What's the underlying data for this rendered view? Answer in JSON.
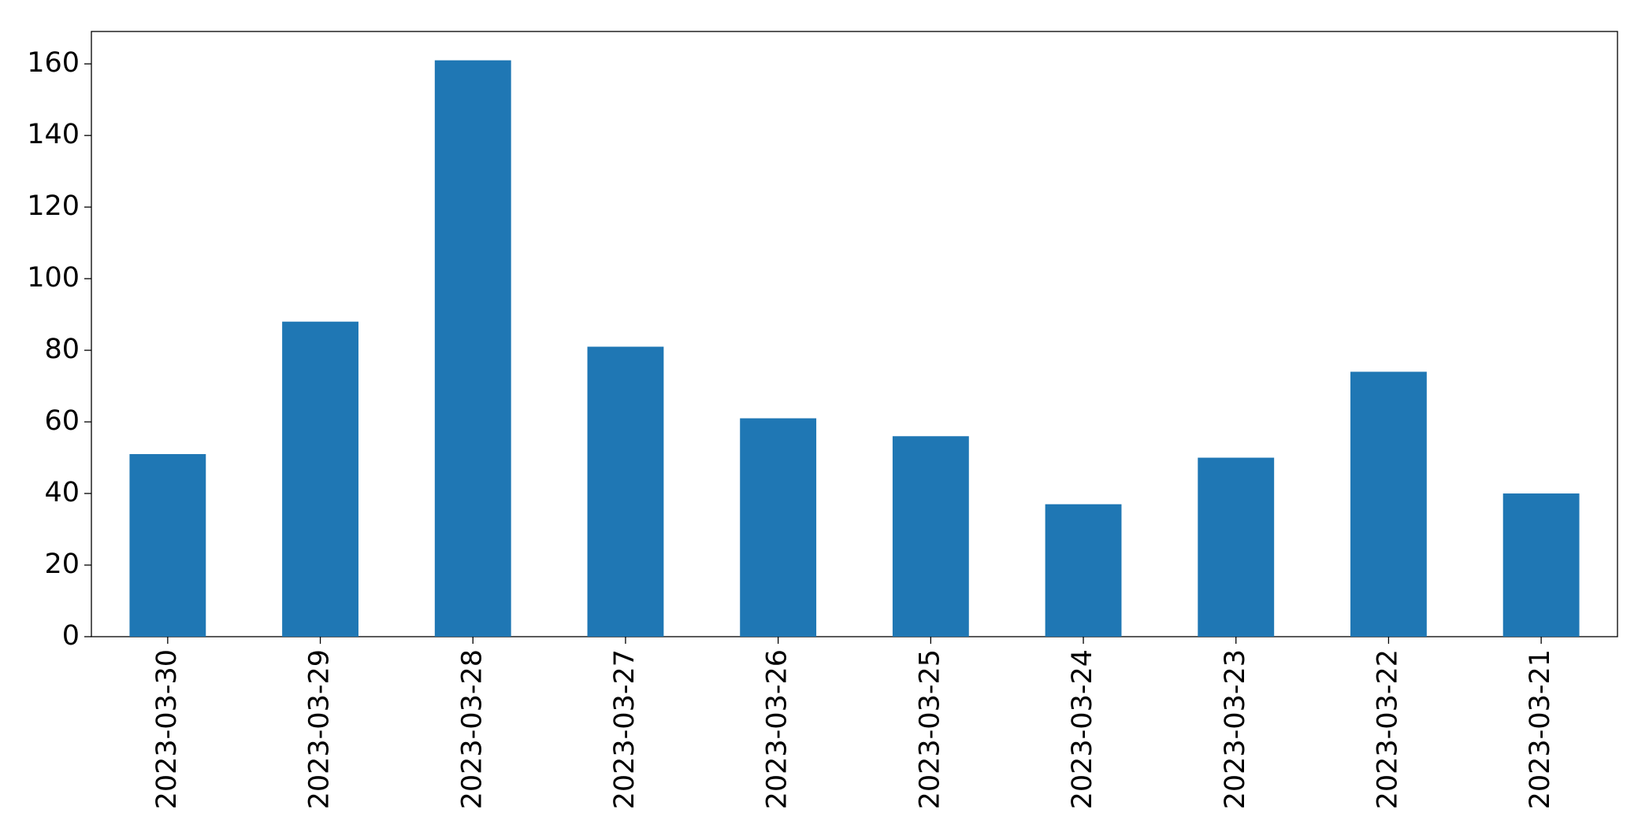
{
  "chart_data": {
    "type": "bar",
    "categories": [
      "2023-03-30",
      "2023-03-29",
      "2023-03-28",
      "2023-03-27",
      "2023-03-26",
      "2023-03-25",
      "2023-03-24",
      "2023-03-23",
      "2023-03-22",
      "2023-03-21"
    ],
    "values": [
      51,
      88,
      161,
      81,
      61,
      56,
      37,
      50,
      74,
      40
    ],
    "color": "#1f77b4",
    "ylim": [
      0,
      169.05
    ],
    "yticks": [
      0,
      20,
      40,
      60,
      80,
      100,
      120,
      140,
      160
    ],
    "grid": false
  }
}
